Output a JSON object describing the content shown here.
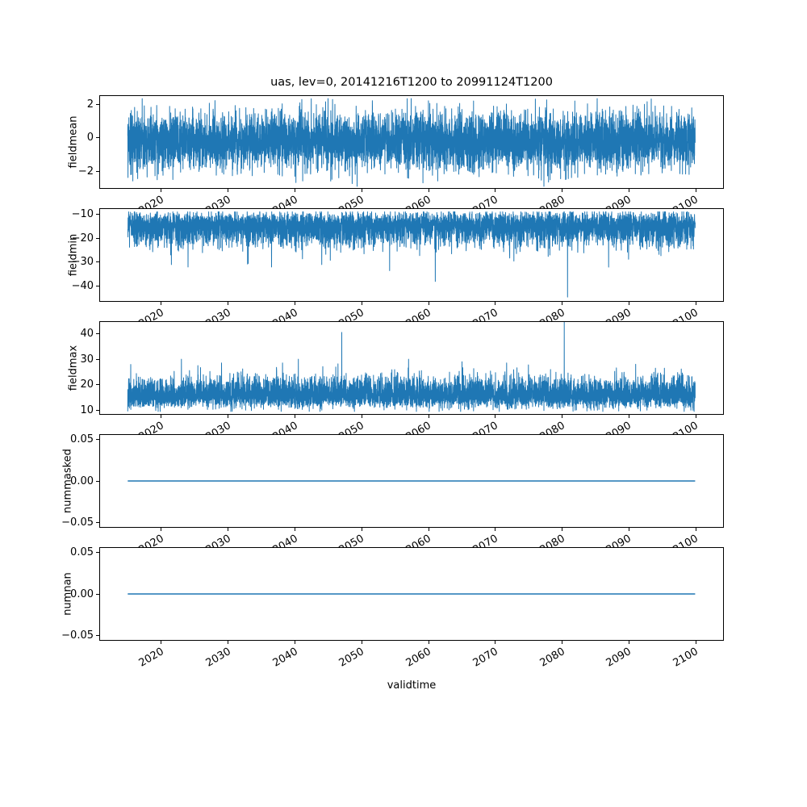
{
  "figure": {
    "background_color": "#ffffff",
    "axes_edge_color": "#000000",
    "text_color": "#000000"
  },
  "chart_data": {
    "type": "line",
    "title": "uas, lev=0, 20141216T1200 to 20991124T1200",
    "xlabel": "validtime",
    "line_color": "#1f77b4",
    "grid": false,
    "legend": "none",
    "xlim": [
      2010.7,
      2104.2
    ],
    "x_start": 2014.96,
    "x_end": 2099.9,
    "x_ticks": [
      {
        "value": 2020,
        "label": "2020"
      },
      {
        "value": 2030,
        "label": "2030"
      },
      {
        "value": 2040,
        "label": "2040"
      },
      {
        "value": 2050,
        "label": "2050"
      },
      {
        "value": 2060,
        "label": "2060"
      },
      {
        "value": 2070,
        "label": "2070"
      },
      {
        "value": 2080,
        "label": "2080"
      },
      {
        "value": 2090,
        "label": "2090"
      },
      {
        "value": 2100,
        "label": "2100"
      }
    ],
    "x_tick_rotation_deg": 30,
    "subplots": [
      {
        "ylabel": "fieldmean",
        "ylim": [
          -3.05,
          2.55
        ],
        "yticks": [
          {
            "value": 2,
            "label": "2"
          },
          {
            "value": 0,
            "label": "0"
          },
          {
            "value": -2,
            "label": "−2"
          }
        ],
        "signal": {
          "kind": "gaussian-noise",
          "mean": -0.2,
          "std": 0.85,
          "clip": [
            -2.9,
            2.35
          ],
          "seed": 42,
          "n": 6000,
          "skew": 0,
          "tail": 0,
          "tail_p": 0
        },
        "spikes": []
      },
      {
        "ylabel": "fieldmin",
        "ylim": [
          -46.5,
          -7.5
        ],
        "yticks": [
          {
            "value": -10,
            "label": "−10"
          },
          {
            "value": -20,
            "label": "−20"
          },
          {
            "value": -30,
            "label": "−30"
          },
          {
            "value": -40,
            "label": "−40"
          }
        ],
        "signal": {
          "kind": "gaussian-noise",
          "mean": -14.5,
          "std": 2.6,
          "clip": [
            -44.8,
            -9.0
          ],
          "seed": 7,
          "n": 6000,
          "skew": -1,
          "tail": -7,
          "tail_p": 0.004
        },
        "spikes": [
          {
            "x": 2021.5,
            "y": -31.0
          },
          {
            "x": 2024.0,
            "y": -32.0
          },
          {
            "x": 2033.0,
            "y": -30.5
          },
          {
            "x": 2036.5,
            "y": -32.0
          },
          {
            "x": 2044.0,
            "y": -31.0
          },
          {
            "x": 2061.0,
            "y": -38.0
          },
          {
            "x": 2080.8,
            "y": -44.5
          }
        ]
      },
      {
        "ylabel": "fieldmax",
        "ylim": [
          8.2,
          44.9
        ],
        "yticks": [
          {
            "value": 40,
            "label": "40"
          },
          {
            "value": 30,
            "label": "30"
          },
          {
            "value": 20,
            "label": "20"
          },
          {
            "value": 10,
            "label": "10"
          }
        ],
        "signal": {
          "kind": "gaussian-noise",
          "mean": 15.5,
          "std": 2.2,
          "clip": [
            9.5,
            28.5
          ],
          "seed": 13,
          "n": 6000,
          "skew": 1,
          "tail": 7,
          "tail_p": 0.004
        },
        "spikes": [
          {
            "x": 2023.0,
            "y": 30.0
          },
          {
            "x": 2029.0,
            "y": 28.5
          },
          {
            "x": 2040.5,
            "y": 30.0
          },
          {
            "x": 2047.0,
            "y": 40.5
          },
          {
            "x": 2057.0,
            "y": 30.0
          },
          {
            "x": 2065.0,
            "y": 29.0
          },
          {
            "x": 2080.3,
            "y": 44.5
          },
          {
            "x": 2091.0,
            "y": 28.0
          }
        ]
      },
      {
        "ylabel": "nummasked",
        "ylim": [
          -0.0567,
          0.0567
        ],
        "yticks": [
          {
            "value": 0.05,
            "label": "0.05"
          },
          {
            "value": 0.0,
            "label": "0.00"
          },
          {
            "value": -0.05,
            "label": "−0.05"
          }
        ],
        "signal": {
          "kind": "constant",
          "value": 0,
          "n": 2
        },
        "spikes": []
      },
      {
        "ylabel": "numnan",
        "ylim": [
          -0.0567,
          0.0567
        ],
        "yticks": [
          {
            "value": 0.05,
            "label": "0.05"
          },
          {
            "value": 0.0,
            "label": "0.00"
          },
          {
            "value": -0.05,
            "label": "−0.05"
          }
        ],
        "signal": {
          "kind": "constant",
          "value": 0,
          "n": 2
        },
        "spikes": []
      }
    ]
  }
}
